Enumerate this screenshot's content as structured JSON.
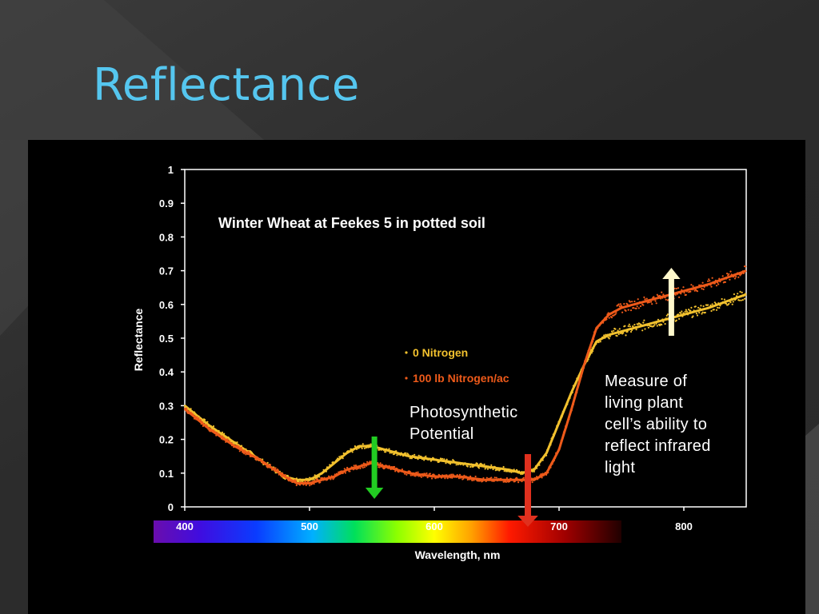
{
  "slide": {
    "title": "Reflectance"
  },
  "chart_data": {
    "type": "scatter",
    "title": "Winter Wheat at Feekes 5 in potted soil",
    "xlabel": "Wavelength, nm",
    "ylabel": "Reflectance",
    "xlim": [
      400,
      850
    ],
    "ylim": [
      0,
      1
    ],
    "x_ticks": [
      400,
      500,
      600,
      700,
      800
    ],
    "y_ticks": [
      0,
      0.1,
      0.2,
      0.3,
      0.4,
      0.5,
      0.6,
      0.7,
      0.8,
      0.9,
      1
    ],
    "y_tick_labels": [
      "0",
      "0.1",
      "0.2",
      "0.3",
      "0.4",
      "0.5",
      "0.6",
      "0.7",
      "0.8",
      "0.9",
      "1"
    ],
    "grid": false,
    "legend_position": "center",
    "series": [
      {
        "name": "0 Nitrogen",
        "color": "#f2c12e",
        "x": [
          400,
          420,
          440,
          460,
          480,
          490,
          500,
          510,
          520,
          530,
          540,
          550,
          560,
          570,
          580,
          600,
          620,
          640,
          660,
          670,
          680,
          690,
          700,
          710,
          720,
          730,
          740,
          750,
          760,
          780,
          800,
          820,
          850
        ],
        "y": [
          0.3,
          0.24,
          0.19,
          0.14,
          0.09,
          0.08,
          0.08,
          0.1,
          0.13,
          0.16,
          0.18,
          0.18,
          0.17,
          0.16,
          0.15,
          0.14,
          0.13,
          0.12,
          0.11,
          0.1,
          0.11,
          0.16,
          0.25,
          0.34,
          0.42,
          0.49,
          0.51,
          0.52,
          0.53,
          0.55,
          0.57,
          0.59,
          0.63
        ]
      },
      {
        "name": "100 lb Nitrogen/ac",
        "color": "#ee5a1a",
        "x": [
          400,
          420,
          440,
          460,
          480,
          490,
          500,
          510,
          520,
          530,
          540,
          550,
          560,
          570,
          580,
          600,
          620,
          640,
          660,
          670,
          680,
          690,
          700,
          710,
          720,
          730,
          740,
          750,
          760,
          780,
          800,
          820,
          850
        ],
        "y": [
          0.29,
          0.23,
          0.18,
          0.14,
          0.09,
          0.07,
          0.07,
          0.08,
          0.09,
          0.11,
          0.12,
          0.13,
          0.12,
          0.11,
          0.1,
          0.09,
          0.09,
          0.08,
          0.08,
          0.08,
          0.08,
          0.1,
          0.17,
          0.29,
          0.42,
          0.53,
          0.57,
          0.59,
          0.6,
          0.62,
          0.64,
          0.66,
          0.7
        ]
      }
    ],
    "legend": [
      {
        "label": "0 Nitrogen",
        "color": "#f2c12e"
      },
      {
        "label": "100 lb Nitrogen/ac",
        "color": "#ee5a1a"
      }
    ],
    "annotations": {
      "photosynthetic": "Photosynthetic\nPotential",
      "infrared": "Measure of\nliving plant\ncell’s ability to\nreflect infrared\nlight"
    },
    "arrows": [
      {
        "name": "green-arrow",
        "x_nm": 552,
        "direction": "down",
        "color": "#22cc22"
      },
      {
        "name": "red-arrow",
        "x_nm": 675,
        "direction": "down",
        "color": "#e0301e"
      },
      {
        "name": "cream-arrow",
        "x_nm": 790,
        "direction": "up",
        "color": "#fff8cc"
      }
    ],
    "spectrum_bar": {
      "from_nm": 375,
      "to_nm": 750
    }
  }
}
